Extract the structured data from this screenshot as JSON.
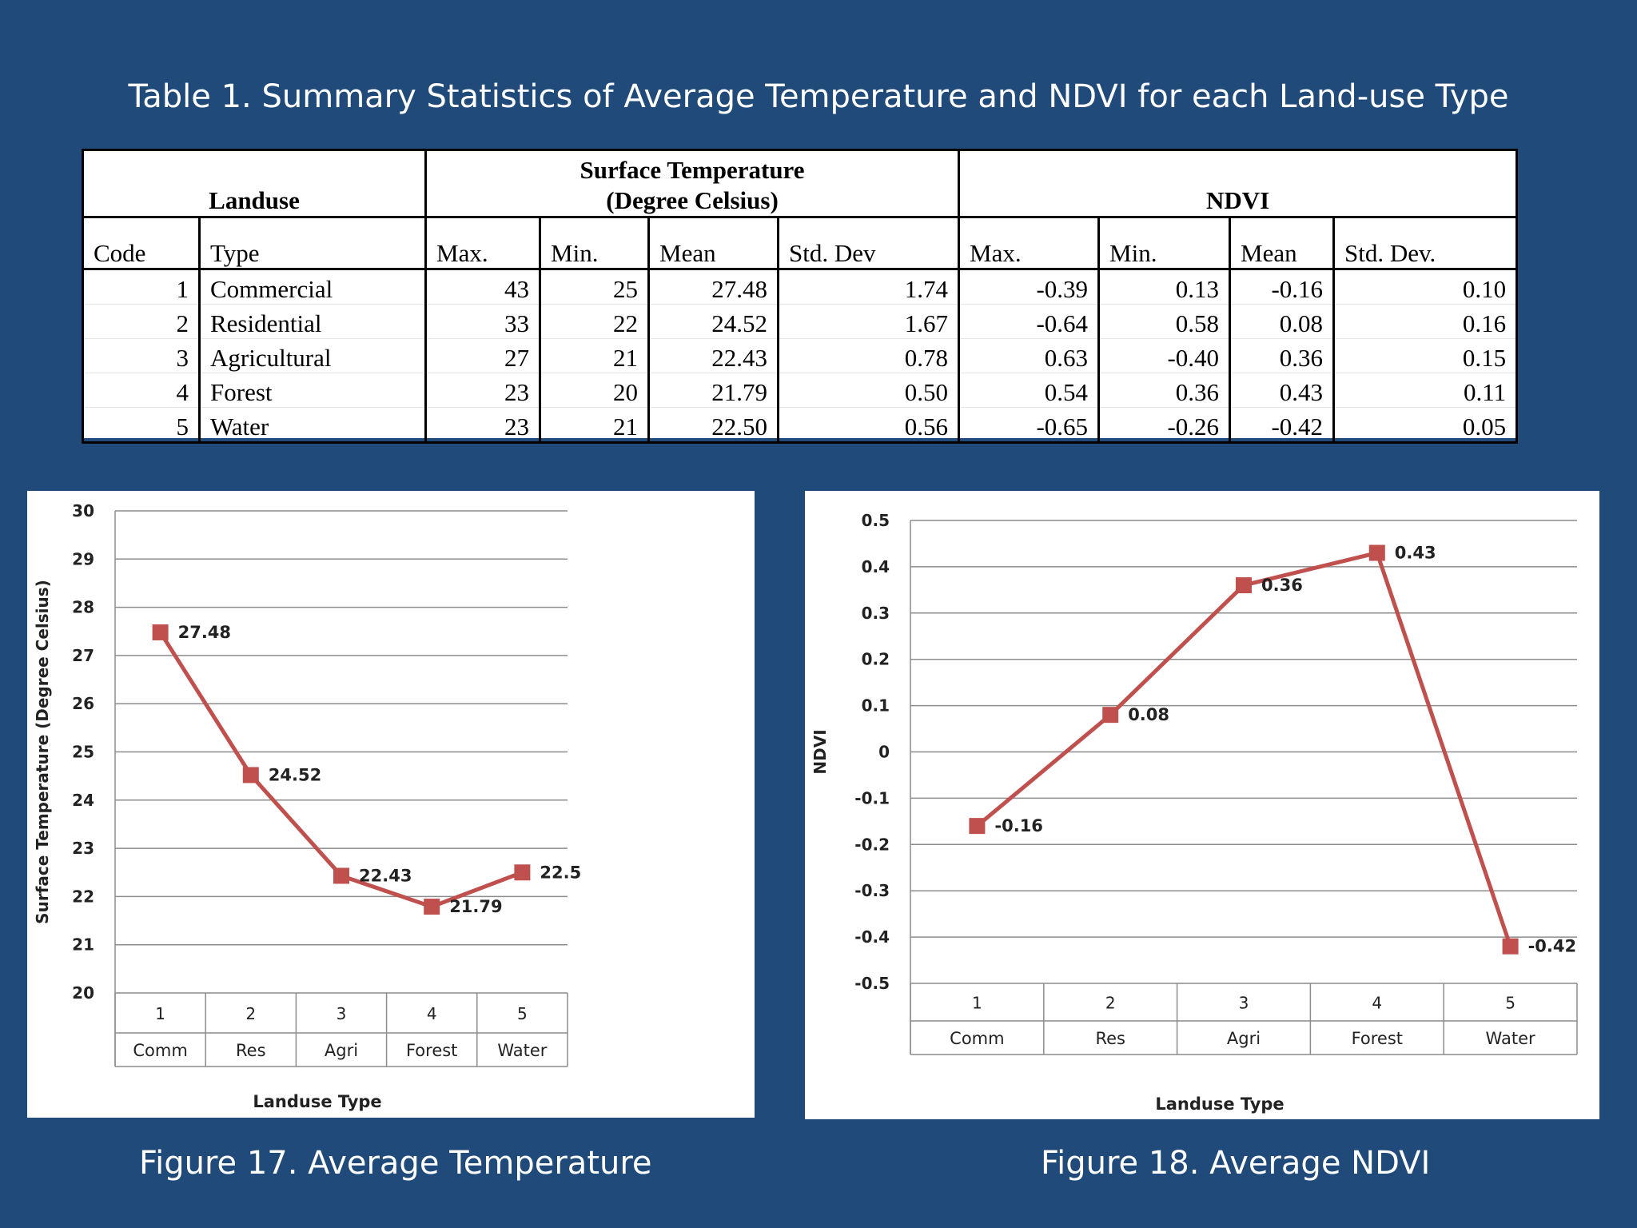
{
  "title": "Table 1. Summary Statistics of Average Temperature and NDVI for each Land-use Type",
  "table": {
    "group_headers": [
      "Landuse",
      "Surface Temperature",
      "(Degree Celsius)",
      "NDVI"
    ],
    "columns": [
      "Code",
      "Type",
      "Max.",
      "Min.",
      "Mean",
      "Std. Dev",
      "Max.",
      "Min.",
      "Mean",
      "Std. Dev."
    ],
    "rows": [
      [
        "1",
        "Commercial",
        "43",
        "25",
        "27.48",
        "1.74",
        "-0.39",
        "0.13",
        "-0.16",
        "0.10"
      ],
      [
        "2",
        "Residential",
        "33",
        "22",
        "24.52",
        "1.67",
        "-0.64",
        "0.58",
        "0.08",
        "0.16"
      ],
      [
        "3",
        "Agricultural",
        "27",
        "21",
        "22.43",
        "0.78",
        "0.63",
        "-0.40",
        "0.36",
        "0.15"
      ],
      [
        "4",
        "Forest",
        "23",
        "20",
        "21.79",
        "0.50",
        "0.54",
        "0.36",
        "0.43",
        "0.11"
      ],
      [
        "5",
        "Water",
        "23",
        "21",
        "22.50",
        "0.56",
        "-0.65",
        "-0.26",
        "-0.42",
        "0.05"
      ]
    ]
  },
  "chart_data": [
    {
      "type": "line",
      "x": [
        "1",
        "2",
        "3",
        "4",
        "5"
      ],
      "categories": [
        "Comm",
        "Res",
        "Agri",
        "Forest",
        "Water"
      ],
      "values": [
        27.48,
        24.52,
        22.43,
        21.79,
        22.5
      ],
      "data_labels": [
        "27.48",
        "24.52",
        "22.43",
        "21.79",
        "22.5"
      ],
      "ylabel": "Surface Temperature (Degree Celsius)",
      "xlabel": "Landuse Type",
      "ylim": [
        20,
        30
      ],
      "yticks": [
        "20",
        "21",
        "22",
        "23",
        "24",
        "25",
        "26",
        "27",
        "28",
        "29",
        "30"
      ],
      "grid": true,
      "color": "#c0504d"
    },
    {
      "type": "line",
      "x": [
        "1",
        "2",
        "3",
        "4",
        "5"
      ],
      "categories": [
        "Comm",
        "Res",
        "Agri",
        "Forest",
        "Water"
      ],
      "values": [
        -0.16,
        0.08,
        0.36,
        0.43,
        -0.42
      ],
      "data_labels": [
        "-0.16",
        "0.08",
        "0.36",
        "0.43",
        "-0.42"
      ],
      "ylabel": "NDVI",
      "xlabel": "Landuse Type",
      "ylim": [
        -0.5,
        0.5
      ],
      "yticks": [
        "-0.5",
        "-0.4",
        "-0.3",
        "-0.2",
        "-0.1",
        "0",
        "0.1",
        "0.2",
        "0.3",
        "0.4",
        "0.5"
      ],
      "grid": true,
      "color": "#c0504d"
    }
  ],
  "captions": {
    "fig17": "Figure 17.  Average Temperature",
    "fig18": "Figure 18. Average NDVI"
  }
}
